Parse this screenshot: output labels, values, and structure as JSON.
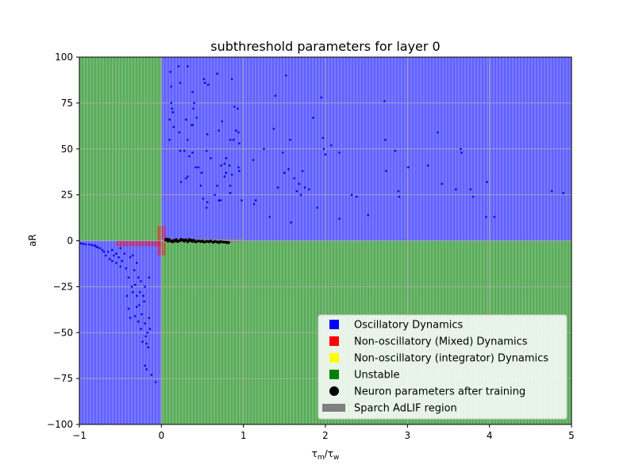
{
  "chart_data": {
    "type": "scatter",
    "title": "subthreshold parameters for layer 0",
    "xlabel_main": "τ",
    "xlabel_sub1": "m",
    "xlabel_sep": "/τ",
    "xlabel_sub2": "w",
    "ylabel": "aR",
    "xlim": [
      -1,
      5
    ],
    "ylim": [
      -100,
      100
    ],
    "xticks": [
      -1,
      0,
      1,
      2,
      3,
      4,
      5
    ],
    "yticks": [
      -100,
      -75,
      -50,
      -25,
      0,
      25,
      50,
      75,
      100
    ],
    "grid": true,
    "colors": {
      "oscillatory": "#0000ff",
      "mixed": "#ff0000",
      "integrator": "#ffff00",
      "unstable": "#008000",
      "neuron": "#000000",
      "sparch": "#808080"
    },
    "regions": [
      {
        "kind": "unstable",
        "x": [
          -1,
          0
        ],
        "y": [
          0,
          100
        ]
      },
      {
        "kind": "oscillatory",
        "x": [
          0,
          5
        ],
        "y": [
          0,
          100
        ]
      },
      {
        "kind": "oscillatory",
        "x": [
          -1,
          0
        ],
        "y": [
          -100,
          0
        ]
      },
      {
        "kind": "unstable",
        "x": [
          0,
          5
        ],
        "y": [
          -100,
          0
        ]
      },
      {
        "kind": "mixed",
        "x": [
          -0.55,
          0
        ],
        "y": [
          -3,
          0
        ]
      },
      {
        "kind": "mixed",
        "x": [
          -0.05,
          0.05
        ],
        "y": [
          -8,
          8
        ]
      },
      {
        "kind": "sparch",
        "x": [
          0,
          1
        ],
        "y": [
          -1,
          1
        ]
      }
    ],
    "series": [
      {
        "name": "Neuron parameters after training",
        "marker_color": "#0000ff",
        "points": [
          [
            0.11,
            92
          ],
          [
            0.21,
            95
          ],
          [
            0.32,
            95
          ],
          [
            0.38,
            81
          ],
          [
            0.43,
            67
          ],
          [
            0.52,
            88
          ],
          [
            0.53,
            86
          ],
          [
            0.57,
            85
          ],
          [
            0.68,
            91
          ],
          [
            0.86,
            88
          ],
          [
            0.89,
            73
          ],
          [
            0.93,
            72
          ],
          [
            0.12,
            84
          ],
          [
            0.12,
            75
          ],
          [
            0.13,
            72
          ],
          [
            0.1,
            66
          ],
          [
            0.14,
            70
          ],
          [
            0.15,
            62
          ],
          [
            0.23,
            86
          ],
          [
            0.3,
            66
          ],
          [
            0.37,
            63
          ],
          [
            0.38,
            63
          ],
          [
            0.39,
            72
          ],
          [
            0.4,
            75
          ],
          [
            0.22,
            59
          ],
          [
            0.23,
            49
          ],
          [
            0.28,
            49
          ],
          [
            0.32,
            55
          ],
          [
            0.34,
            46
          ],
          [
            0.38,
            48
          ],
          [
            0.42,
            40
          ],
          [
            0.45,
            40
          ],
          [
            0.49,
            37
          ],
          [
            0.55,
            49
          ],
          [
            0.56,
            58
          ],
          [
            0.6,
            45
          ],
          [
            0.24,
            32
          ],
          [
            0.3,
            34
          ],
          [
            0.32,
            35
          ],
          [
            0.48,
            30
          ],
          [
            0.51,
            23
          ],
          [
            0.55,
            18
          ],
          [
            0.56,
            21
          ],
          [
            0.65,
            25
          ],
          [
            0.68,
            30
          ],
          [
            0.7,
            22
          ],
          [
            0.72,
            22
          ],
          [
            0.73,
            41
          ],
          [
            0.7,
            60
          ],
          [
            0.74,
            65
          ],
          [
            0.77,
            35
          ],
          [
            0.77,
            42
          ],
          [
            0.79,
            37
          ],
          [
            0.79,
            45
          ],
          [
            0.83,
            41
          ],
          [
            0.84,
            55
          ],
          [
            0.88,
            55
          ],
          [
            0.91,
            60
          ],
          [
            0.94,
            59
          ],
          [
            0.95,
            53
          ],
          [
            0.84,
            26
          ],
          [
            0.84,
            30
          ],
          [
            0.86,
            36
          ],
          [
            0.94,
            40
          ],
          [
            0.95,
            38
          ],
          [
            0.98,
            22
          ],
          [
            1.12,
            44
          ],
          [
            1.13,
            20
          ],
          [
            1.15,
            22
          ],
          [
            1.25,
            50
          ],
          [
            1.32,
            13
          ],
          [
            1.37,
            61
          ],
          [
            1.39,
            79
          ],
          [
            1.42,
            29
          ],
          [
            1.48,
            48
          ],
          [
            1.5,
            37
          ],
          [
            1.52,
            90
          ],
          [
            1.55,
            39
          ],
          [
            1.57,
            55
          ],
          [
            1.58,
            10
          ],
          [
            1.62,
            34
          ],
          [
            1.65,
            27
          ],
          [
            1.68,
            31
          ],
          [
            1.7,
            25
          ],
          [
            1.72,
            38
          ],
          [
            1.75,
            29
          ],
          [
            1.8,
            28
          ],
          [
            1.85,
            67
          ],
          [
            1.9,
            18
          ],
          [
            1.95,
            78
          ],
          [
            1.97,
            56
          ],
          [
            1.98,
            50
          ],
          [
            2.0,
            47
          ],
          [
            2.07,
            52
          ],
          [
            2.17,
            48
          ],
          [
            2.17,
            12
          ],
          [
            2.32,
            25
          ],
          [
            2.38,
            24
          ],
          [
            2.52,
            14
          ],
          [
            2.72,
            76
          ],
          [
            2.73,
            55
          ],
          [
            2.74,
            38
          ],
          [
            2.85,
            49
          ],
          [
            2.89,
            27
          ],
          [
            2.9,
            24
          ],
          [
            3.01,
            40
          ],
          [
            3.25,
            41
          ],
          [
            3.37,
            59
          ],
          [
            3.42,
            31
          ],
          [
            3.59,
            28
          ],
          [
            3.65,
            50
          ],
          [
            3.66,
            48
          ],
          [
            3.77,
            28
          ],
          [
            3.8,
            24
          ],
          [
            3.96,
            13
          ],
          [
            3.97,
            32
          ],
          [
            4.06,
            13
          ],
          [
            4.76,
            27
          ],
          [
            4.9,
            26
          ],
          [
            0.1,
            55
          ],
          [
            -0.98,
            -1.5
          ],
          [
            -0.95,
            -1.7
          ],
          [
            -0.92,
            -2
          ],
          [
            -0.88,
            -2
          ],
          [
            -0.85,
            -2.3
          ],
          [
            -0.82,
            -2.5
          ],
          [
            -0.8,
            -3
          ],
          [
            -0.78,
            -3.5
          ],
          [
            -0.75,
            -4
          ],
          [
            -0.72,
            -5
          ],
          [
            -0.7,
            -6
          ],
          [
            -0.68,
            -8
          ],
          [
            -0.65,
            -6
          ],
          [
            -0.63,
            -10
          ],
          [
            -0.6,
            -11
          ],
          [
            -0.58,
            -8
          ],
          [
            -0.55,
            -12
          ],
          [
            -0.52,
            -9
          ],
          [
            -0.5,
            -14
          ],
          [
            -0.48,
            -11
          ],
          [
            -0.45,
            -7
          ],
          [
            -0.43,
            -15
          ],
          [
            -0.4,
            -20
          ],
          [
            -0.38,
            -9
          ],
          [
            -0.36,
            -25
          ],
          [
            -0.35,
            -28
          ],
          [
            -0.33,
            -16
          ],
          [
            -0.32,
            -24
          ],
          [
            -0.3,
            -30
          ],
          [
            -0.28,
            -20
          ],
          [
            -0.27,
            -35
          ],
          [
            -0.25,
            -22
          ],
          [
            -0.24,
            -40
          ],
          [
            -0.22,
            -30
          ],
          [
            -0.21,
            -33
          ],
          [
            -0.2,
            -45
          ],
          [
            -0.19,
            -52
          ],
          [
            -0.18,
            -56
          ],
          [
            -0.17,
            -50
          ],
          [
            -0.16,
            -58
          ],
          [
            -0.15,
            -42
          ],
          [
            -0.14,
            -48
          ],
          [
            -0.2,
            -68
          ],
          [
            -0.18,
            -70
          ],
          [
            -0.12,
            -73
          ],
          [
            -0.07,
            -77
          ],
          [
            -0.4,
            -37
          ],
          [
            -0.38,
            -42
          ],
          [
            -0.32,
            -41
          ],
          [
            -0.28,
            -44
          ],
          [
            -0.25,
            -48
          ],
          [
            -0.23,
            -55
          ],
          [
            -0.2,
            -25
          ],
          [
            -0.15,
            -20
          ],
          [
            -0.3,
            -12
          ],
          [
            -0.35,
            -8
          ],
          [
            -0.42,
            -30
          ],
          [
            -0.3,
            -36
          ],
          [
            -0.26,
            -28
          ],
          [
            -0.6,
            -5
          ],
          [
            -0.55,
            -7
          ],
          [
            -0.5,
            -4
          ]
        ]
      },
      {
        "name": "Neuron parameters after training",
        "marker_color": "#000000",
        "points": [
          [
            0.05,
            0.5
          ],
          [
            0.08,
            -0.2
          ],
          [
            0.1,
            0.4
          ],
          [
            0.12,
            -0.3
          ],
          [
            0.15,
            0.2
          ],
          [
            0.18,
            0.6
          ],
          [
            0.2,
            -0.4
          ],
          [
            0.22,
            0.1
          ],
          [
            0.25,
            0.3
          ],
          [
            0.28,
            -0.2
          ],
          [
            0.3,
            0.5
          ],
          [
            0.32,
            -0.5
          ],
          [
            0.35,
            0.1
          ],
          [
            0.38,
            -0.3
          ],
          [
            0.4,
            0.2
          ],
          [
            0.42,
            -0.6
          ],
          [
            0.45,
            -0.1
          ],
          [
            0.48,
            -0.4
          ],
          [
            0.5,
            -0.2
          ],
          [
            0.52,
            -0.7
          ],
          [
            0.55,
            -0.3
          ],
          [
            0.58,
            -0.5
          ],
          [
            0.6,
            -0.2
          ],
          [
            0.63,
            -0.8
          ],
          [
            0.65,
            -0.4
          ],
          [
            0.68,
            -0.6
          ],
          [
            0.7,
            -0.9
          ],
          [
            0.72,
            -0.5
          ],
          [
            0.75,
            -0.7
          ],
          [
            0.78,
            -0.8
          ],
          [
            0.8,
            -1.0
          ],
          [
            0.82,
            -0.9
          ],
          [
            0.06,
            0.9
          ],
          [
            0.09,
            0.7
          ],
          [
            0.14,
            -0.5
          ],
          [
            0.17,
            -0.1
          ],
          [
            0.24,
            0.8
          ],
          [
            0.27,
            0.4
          ],
          [
            0.34,
            0.7
          ],
          [
            0.37,
            0.3
          ]
        ]
      }
    ],
    "legend": {
      "position": "lower-right",
      "entries": [
        {
          "label": "Oscillatory Dynamics",
          "marker": "square",
          "color": "#0000ff"
        },
        {
          "label": "Non-oscillatory (Mixed) Dynamics",
          "marker": "square",
          "color": "#ff0000"
        },
        {
          "label": "Non-oscillatory (integrator) Dynamics",
          "marker": "square",
          "color": "#ffff00"
        },
        {
          "label": "Unstable",
          "marker": "square",
          "color": "#008000"
        },
        {
          "label": "Neuron parameters after training",
          "marker": "circle",
          "color": "#000000"
        },
        {
          "label": "Sparch AdLIF region",
          "marker": "patch",
          "color": "#808080"
        }
      ]
    }
  }
}
